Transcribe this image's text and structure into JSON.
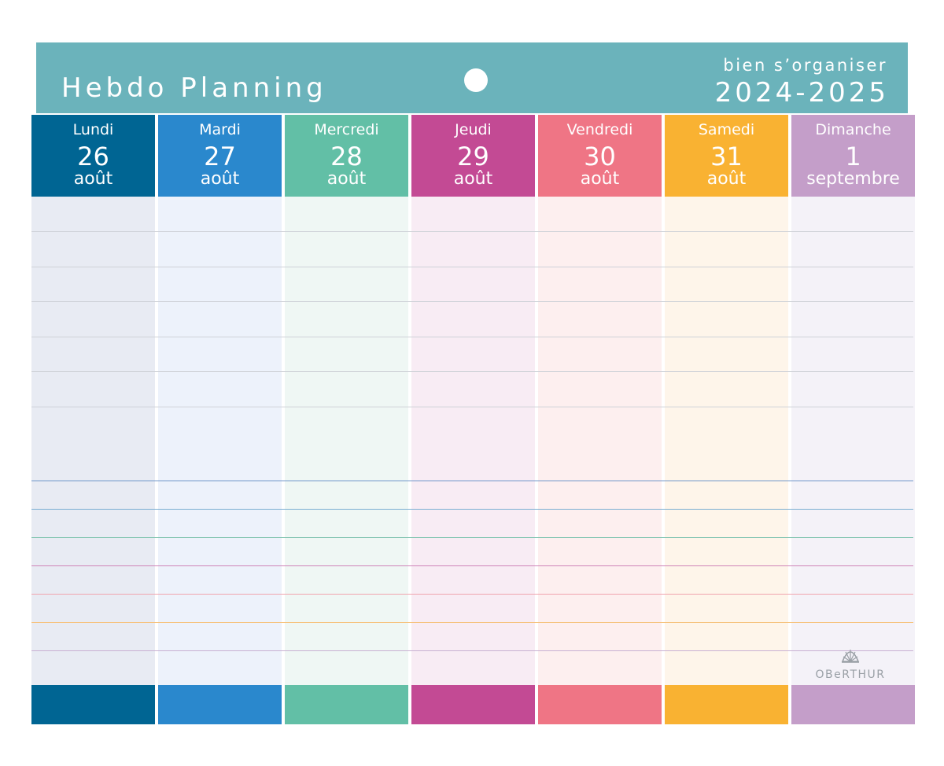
{
  "header": {
    "title": "Hebdo Planning",
    "subtitle": "bien s’organiser",
    "year": "2024-2025",
    "color": "#6bb3bb"
  },
  "days": [
    {
      "name": "Lundi",
      "number": "26",
      "month": "août",
      "color": "#006593",
      "body_color": "#e8ebf3"
    },
    {
      "name": "Mardi",
      "number": "27",
      "month": "août",
      "color": "#2a88cd",
      "body_color": "#edf2fb"
    },
    {
      "name": "Mercredi",
      "number": "28",
      "month": "août",
      "color": "#62bfa6",
      "body_color": "#eff7f4"
    },
    {
      "name": "Jeudi",
      "number": "29",
      "month": "août",
      "color": "#c34a94",
      "body_color": "#f8ecf4"
    },
    {
      "name": "Vendredi",
      "number": "30",
      "month": "août",
      "color": "#ef7585",
      "body_color": "#fdefef"
    },
    {
      "name": "Samedi",
      "number": "31",
      "month": "août",
      "color": "#f9b232",
      "body_color": "#fef5ea"
    },
    {
      "name": "Dimanche",
      "number": "1",
      "month": "septembre",
      "color": "#c49ec9",
      "body_color": "#f4f2f8"
    }
  ],
  "brand": {
    "name": "OBeRTHUR",
    "icon": "shell-logo-icon"
  }
}
